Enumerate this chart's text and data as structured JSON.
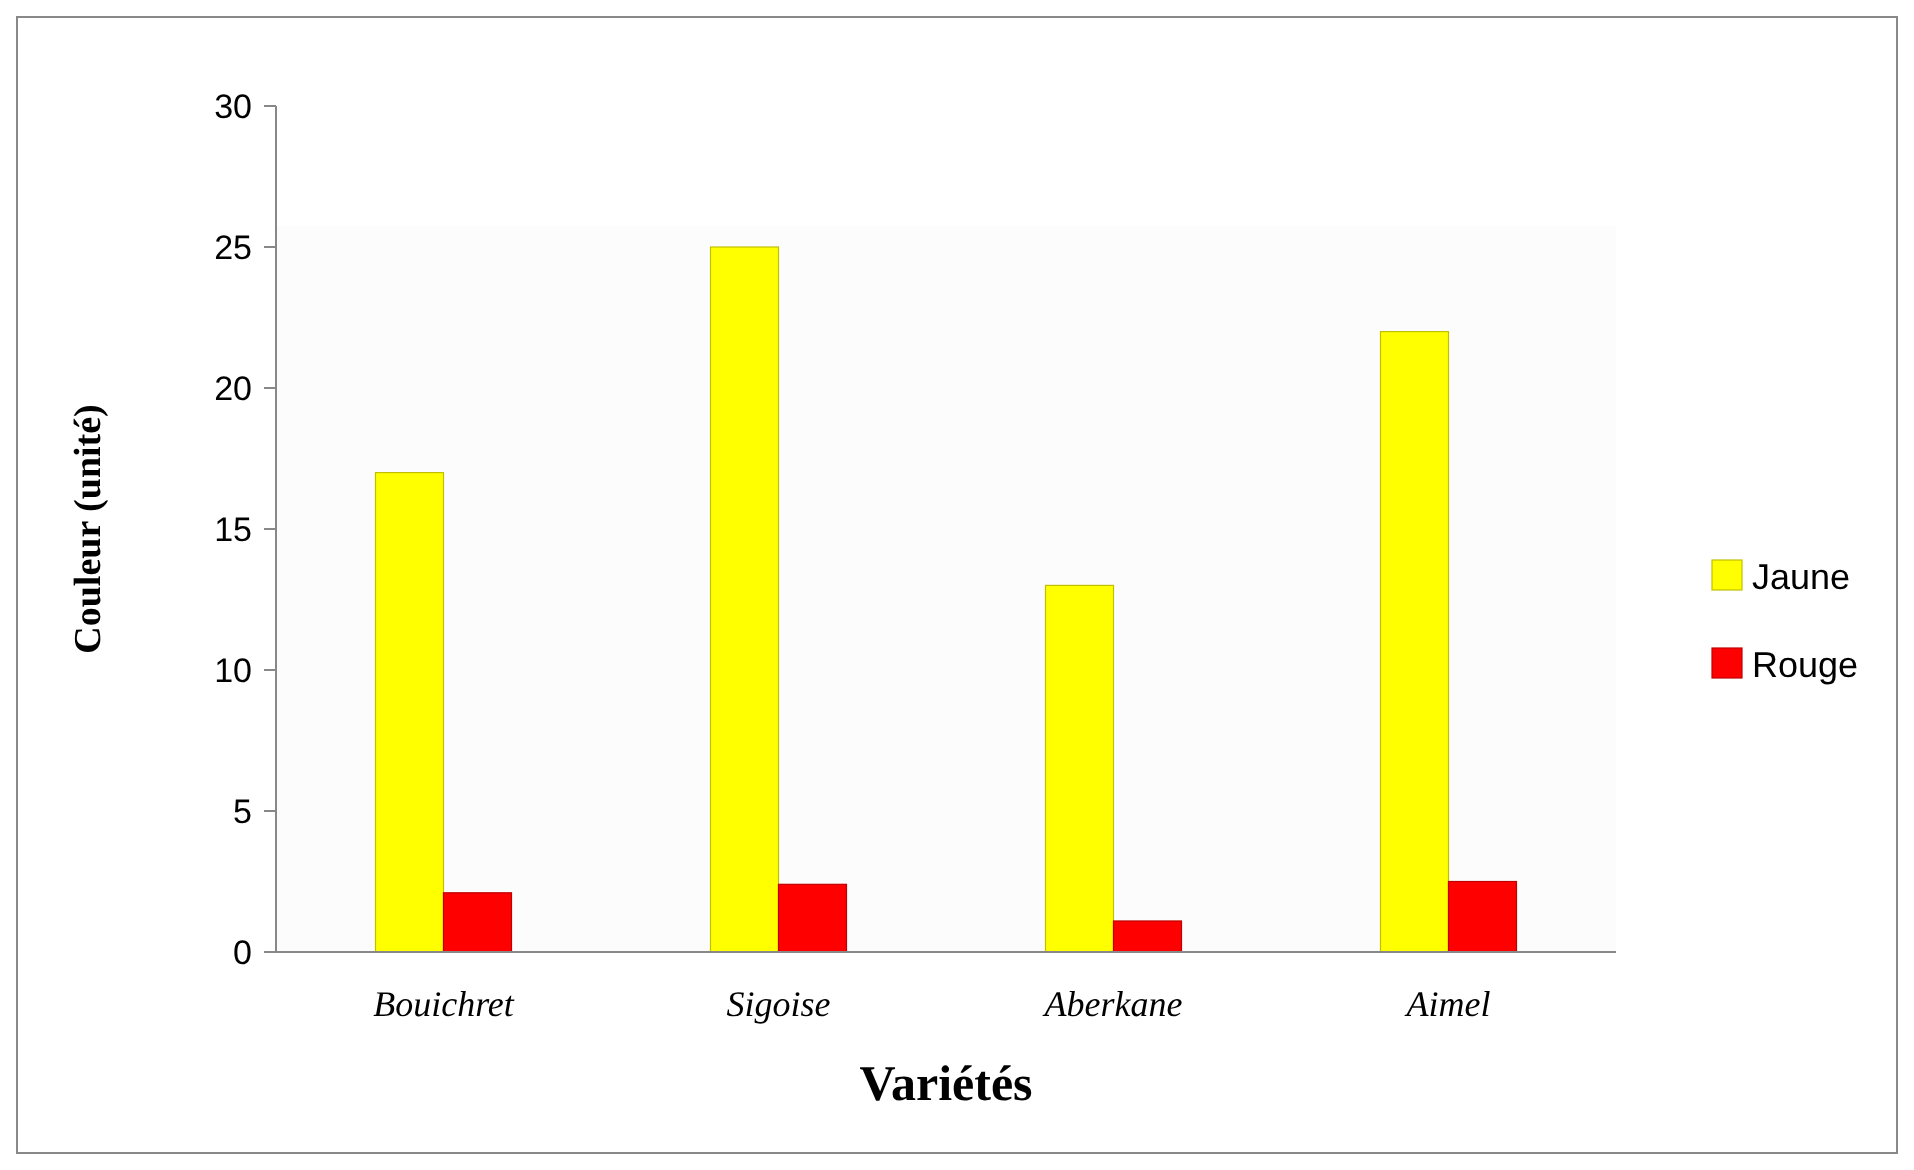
{
  "chart_data": {
    "type": "bar",
    "xlabel": "Variétés",
    "ylabel": "Couleur (unité)",
    "categories": [
      "Bouichret",
      "Sigoise",
      "Aberkane",
      "Aimel"
    ],
    "series": [
      {
        "name": "Jaune",
        "color": "#ffff00",
        "values": [
          17,
          25,
          13,
          22
        ]
      },
      {
        "name": "Rouge",
        "color": "#ff0000",
        "values": [
          2.1,
          2.4,
          1.1,
          2.5
        ]
      }
    ],
    "ylim": [
      0,
      30
    ],
    "yticks": [
      0,
      5,
      10,
      15,
      20,
      25,
      30
    ],
    "grid": false,
    "legend": "right"
  }
}
